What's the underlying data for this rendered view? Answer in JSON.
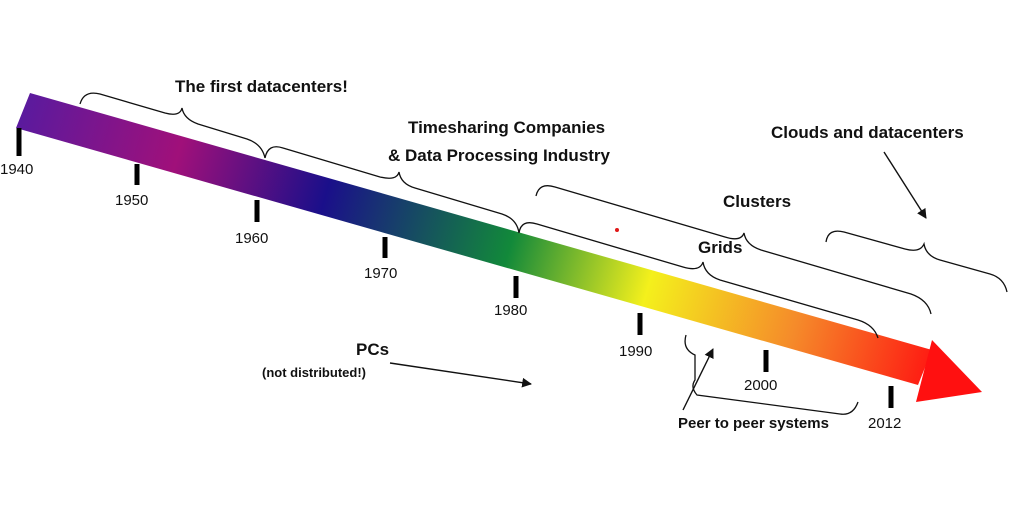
{
  "timeline": {
    "years": [
      "1940",
      "1950",
      "1960",
      "1970",
      "1980",
      "1990",
      "2000",
      "2012"
    ],
    "gradient_colors": [
      "#5a1a9e",
      "#a0107a",
      "#1a0f8a",
      "#12893a",
      "#f4f01c",
      "#f58a2a",
      "#ff1010"
    ],
    "arrow_head_color": "#ff1010"
  },
  "eras": {
    "first_datacenters": "The first datacenters!",
    "timesharing_line1": "Timesharing Companies",
    "timesharing_line2": "& Data Processing Industry",
    "clouds": "Clouds and datacenters",
    "clusters": "Clusters",
    "grids": "Grids",
    "pcs": "PCs",
    "pcs_note": "(not distributed!)",
    "p2p": "Peer to peer systems"
  },
  "marker_color": "#e01818"
}
